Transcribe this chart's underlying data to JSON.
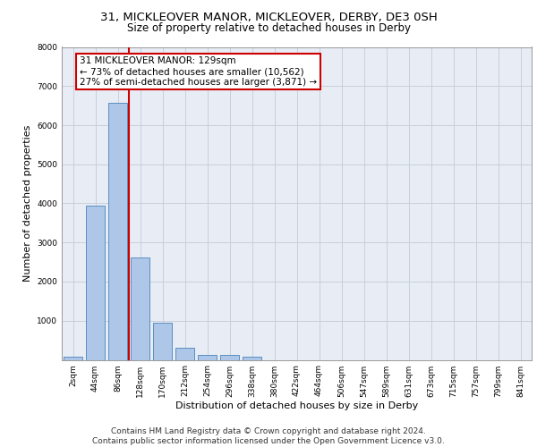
{
  "title_line1": "31, MICKLEOVER MANOR, MICKLEOVER, DERBY, DE3 0SH",
  "title_line2": "Size of property relative to detached houses in Derby",
  "xlabel": "Distribution of detached houses by size in Derby",
  "ylabel": "Number of detached properties",
  "categories": [
    "2sqm",
    "44sqm",
    "86sqm",
    "128sqm",
    "170sqm",
    "212sqm",
    "254sqm",
    "296sqm",
    "338sqm",
    "380sqm",
    "422sqm",
    "464sqm",
    "506sqm",
    "547sqm",
    "589sqm",
    "631sqm",
    "673sqm",
    "715sqm",
    "757sqm",
    "799sqm",
    "841sqm"
  ],
  "bar_values": [
    75,
    3950,
    6580,
    2620,
    960,
    310,
    130,
    120,
    90,
    0,
    0,
    0,
    0,
    0,
    0,
    0,
    0,
    0,
    0,
    0,
    0
  ],
  "bar_color": "#aec6e8",
  "bar_edge_color": "#5a8fc2",
  "annotation_line1": "31 MICKLEOVER MANOR: 129sqm",
  "annotation_line2": "← 73% of detached houses are smaller (10,562)",
  "annotation_line3": "27% of semi-detached houses are larger (3,871) →",
  "annotation_box_color": "#ffffff",
  "annotation_box_edge": "#cc0000",
  "vertical_line_color": "#cc0000",
  "vertical_line_x": 2.5,
  "ylim": [
    0,
    8000
  ],
  "yticks": [
    0,
    1000,
    2000,
    3000,
    4000,
    5000,
    6000,
    7000,
    8000
  ],
  "grid_color": "#c8d0dc",
  "background_color": "#e8edf5",
  "footer_line1": "Contains HM Land Registry data © Crown copyright and database right 2024.",
  "footer_line2": "Contains public sector information licensed under the Open Government Licence v3.0.",
  "title_fontsize": 9.5,
  "subtitle_fontsize": 8.5,
  "axis_label_fontsize": 8,
  "tick_fontsize": 6.5,
  "annotation_fontsize": 7.5,
  "footer_fontsize": 6.5
}
